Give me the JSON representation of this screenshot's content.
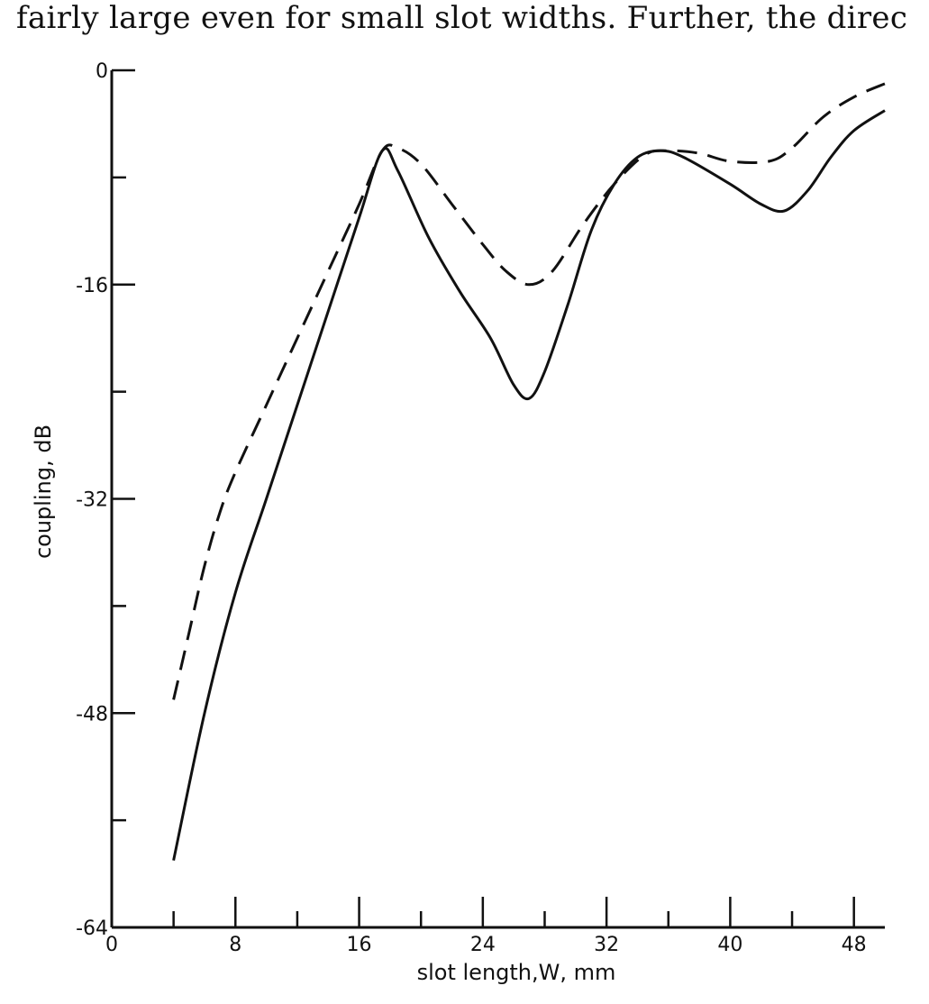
{
  "page": {
    "header_text": "fairly large even for small slot widths. Further, the direc"
  },
  "chart_data": {
    "type": "line",
    "title": "",
    "xlabel": "slot length,W, mm",
    "ylabel": "coupling, dB",
    "xlim": [
      0,
      50
    ],
    "ylim": [
      -64,
      0
    ],
    "x_ticks": [
      0,
      4,
      8,
      12,
      16,
      20,
      24,
      28,
      32,
      36,
      40,
      44,
      48
    ],
    "x_tick_labels": [
      {
        "value": 0,
        "label": "0"
      },
      {
        "value": 8,
        "label": "8"
      },
      {
        "value": 16,
        "label": "16"
      },
      {
        "value": 24,
        "label": "24"
      },
      {
        "value": 32,
        "label": "32"
      },
      {
        "value": 40,
        "label": "40"
      },
      {
        "value": 48,
        "label": "48"
      }
    ],
    "y_ticks": [
      0,
      -8,
      -16,
      -24,
      -32,
      -40,
      -48,
      -56,
      -64
    ],
    "y_tick_labels": [
      {
        "value": 0,
        "label": "0"
      },
      {
        "value": -16,
        "label": "-16"
      },
      {
        "value": -32,
        "label": "-32"
      },
      {
        "value": -48,
        "label": "-48"
      },
      {
        "value": -64,
        "label": "-64"
      }
    ],
    "grid": false,
    "legend": "none",
    "series": [
      {
        "style": "solid",
        "points": [
          [
            4,
            -59
          ],
          [
            6,
            -48
          ],
          [
            8,
            -39
          ],
          [
            10,
            -32
          ],
          [
            12,
            -25
          ],
          [
            14,
            -18
          ],
          [
            16,
            -11
          ],
          [
            17.5,
            -6
          ],
          [
            18.5,
            -7.5
          ],
          [
            20.5,
            -12.5
          ],
          [
            22.5,
            -16.5
          ],
          [
            24.5,
            -20
          ],
          [
            26,
            -23.5
          ],
          [
            27,
            -24.5
          ],
          [
            28,
            -22.5
          ],
          [
            29.5,
            -17.5
          ],
          [
            31,
            -12
          ],
          [
            32.5,
            -8.5
          ],
          [
            34,
            -6.5
          ],
          [
            35.5,
            -6
          ],
          [
            37,
            -6.5
          ],
          [
            40,
            -8.5
          ],
          [
            42,
            -10
          ],
          [
            43.5,
            -10.5
          ],
          [
            45,
            -9
          ],
          [
            46.5,
            -6.5
          ],
          [
            48,
            -4.5
          ],
          [
            50,
            -3
          ]
        ]
      },
      {
        "style": "dashed",
        "points": [
          [
            4,
            -47
          ],
          [
            5,
            -42
          ],
          [
            6,
            -37
          ],
          [
            7,
            -33
          ],
          [
            8,
            -30
          ],
          [
            10,
            -25
          ],
          [
            12,
            -20
          ],
          [
            14,
            -15
          ],
          [
            16,
            -10
          ],
          [
            17.5,
            -6
          ],
          [
            18.5,
            -5.8
          ],
          [
            20,
            -7
          ],
          [
            22,
            -10
          ],
          [
            24,
            -13
          ],
          [
            25.5,
            -15
          ],
          [
            27,
            -16
          ],
          [
            28.5,
            -15
          ],
          [
            30.5,
            -11.5
          ],
          [
            32.5,
            -8.5
          ],
          [
            34.5,
            -6.3
          ],
          [
            36,
            -6
          ],
          [
            38,
            -6.2
          ],
          [
            40,
            -6.8
          ],
          [
            42.5,
            -6.8
          ],
          [
            44,
            -5.8
          ],
          [
            46,
            -3.5
          ],
          [
            48,
            -2
          ],
          [
            50,
            -1
          ]
        ]
      }
    ]
  }
}
